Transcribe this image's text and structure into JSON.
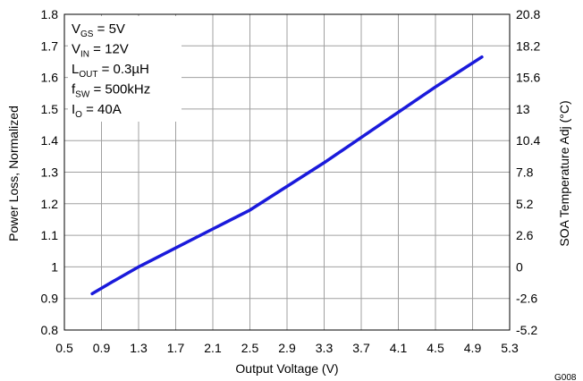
{
  "chart_data": {
    "type": "line",
    "title": "",
    "xlabel": "Output Voltage (V)",
    "ylabel": "Power Loss, Normalized",
    "y2label": "SOA Temperature Adj (°C)",
    "xlim": [
      0.5,
      5.3
    ],
    "ylim": [
      0.8,
      1.8
    ],
    "y2lim": [
      -5.2,
      20.8
    ],
    "xticks": [
      "0.5",
      "0.9",
      "1.3",
      "1.7",
      "2.1",
      "2.5",
      "2.9",
      "3.3",
      "3.7",
      "4.1",
      "4.5",
      "4.9",
      "5.3"
    ],
    "yticks": [
      "0.8",
      "0.9",
      "1",
      "1.1",
      "1.2",
      "1.3",
      "1.4",
      "1.5",
      "1.6",
      "1.7",
      "1.8"
    ],
    "y2ticks": [
      "-5.2",
      "-2.6",
      "0",
      "2.6",
      "5.2",
      "7.8",
      "10.4",
      "13",
      "15.6",
      "18.2",
      "20.8"
    ],
    "grid": true,
    "color": "#1a1adb",
    "series": [
      {
        "x": [
          0.8,
          1.0,
          1.3,
          1.7,
          2.1,
          2.5,
          2.9,
          3.3,
          3.7,
          4.1,
          4.5,
          5.0
        ],
        "y": [
          0.915,
          0.95,
          1.0,
          1.06,
          1.12,
          1.18,
          1.255,
          1.33,
          1.41,
          1.49,
          1.57,
          1.665
        ]
      }
    ],
    "conditions": [
      {
        "base": "V",
        "sub": "GS",
        "rest": " = 5V"
      },
      {
        "base": "V",
        "sub": "IN",
        "rest": " = 12V"
      },
      {
        "base": "L",
        "sub": "OUT",
        "rest": " = 0.3µH"
      },
      {
        "base": "f",
        "sub": "SW",
        "rest": " = 500kHz"
      },
      {
        "base": "I",
        "sub": "O",
        "rest": " = 40A"
      }
    ],
    "figure_id": "G008"
  }
}
